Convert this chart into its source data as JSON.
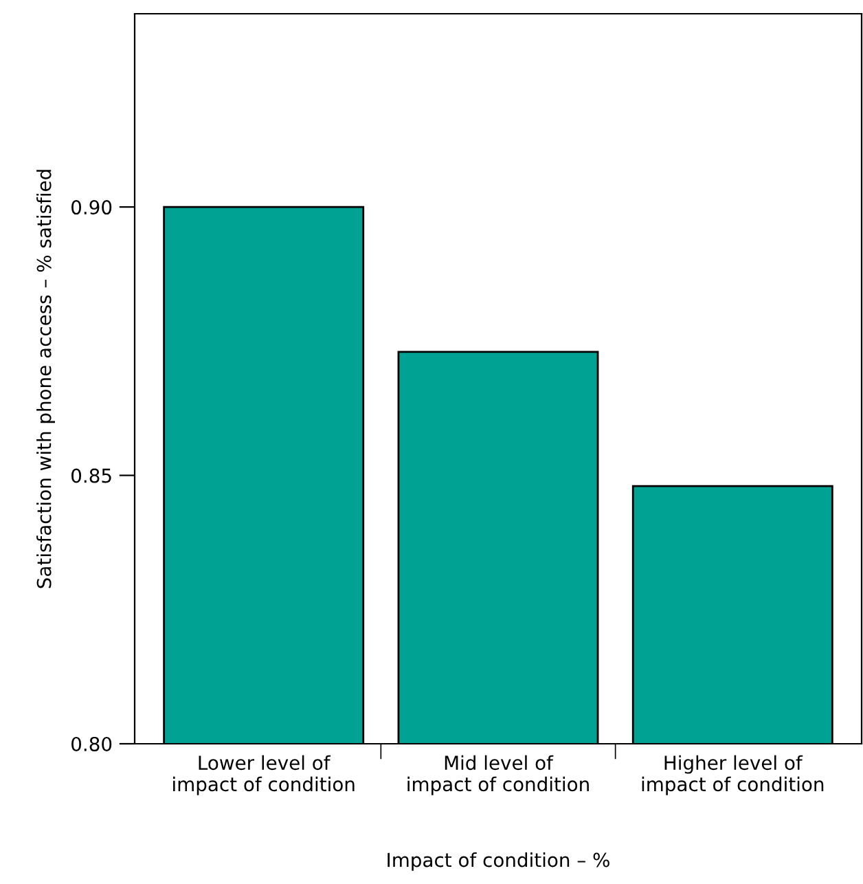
{
  "chart_data": {
    "type": "bar",
    "xlabel": "Impact of condition – %",
    "ylabel": "Satisfaction with phone access – % satisfied",
    "categories": [
      "Lower level of\nimpact of condition",
      "Mid level of\nimpact of condition",
      "Higher level of\nimpact of condition"
    ],
    "values": [
      0.9,
      0.873,
      0.848
    ],
    "color": "#00a294",
    "ylim": [
      0.8,
      0.936
    ],
    "yticks": [
      {
        "value": 0.8,
        "label": "0.80"
      },
      {
        "value": 0.85,
        "label": "0.85"
      },
      {
        "value": 0.9,
        "label": "0.90"
      }
    ],
    "grid": false
  }
}
